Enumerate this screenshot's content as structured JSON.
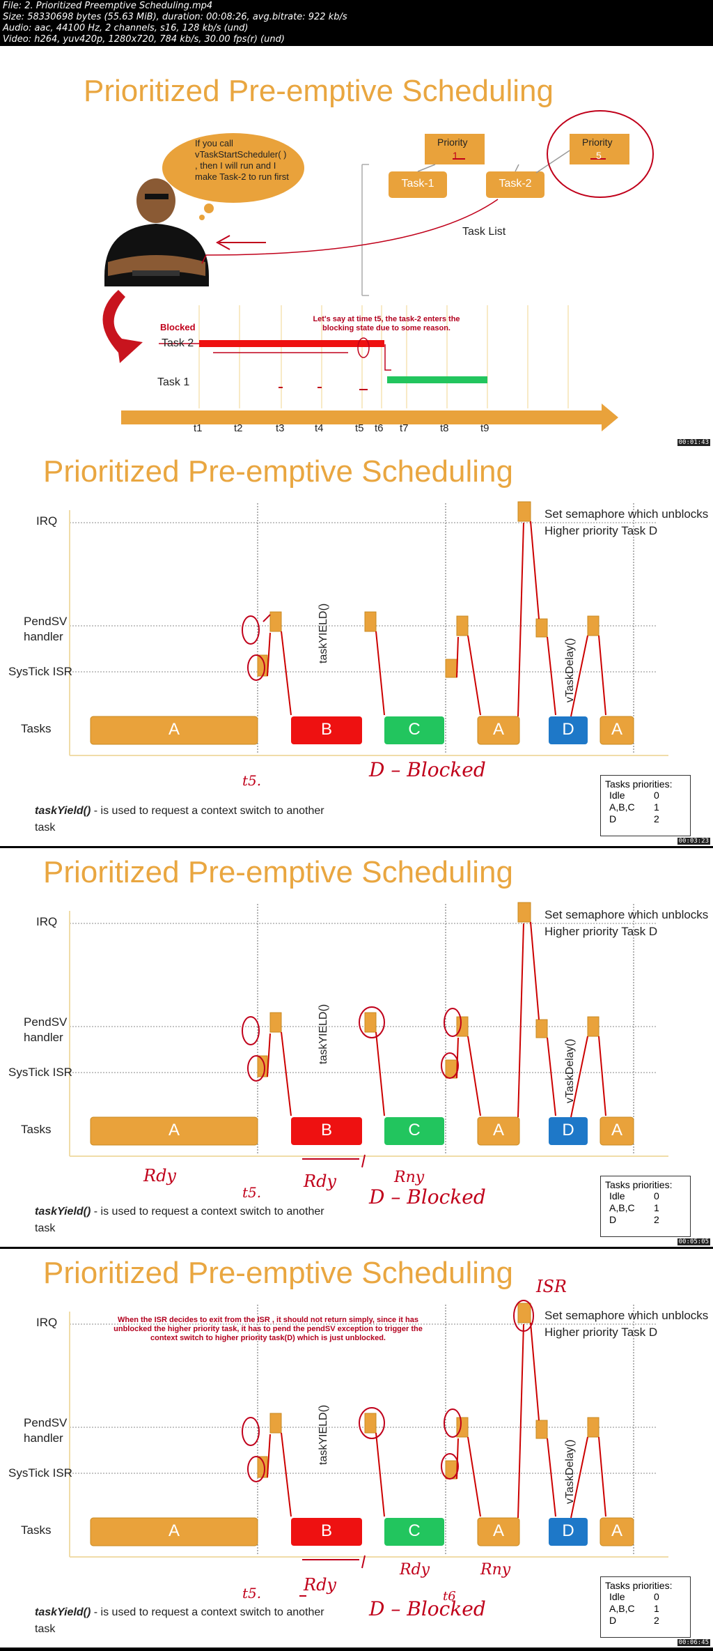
{
  "header": {
    "line1": "File: 2. Prioritized Preemptive Scheduling.mp4",
    "line2": "Size: 58330698 bytes (55.63 MiB), duration: 00:08:26, avg.bitrate: 922 kb/s",
    "line3": "Audio: aac, 44100 Hz, 2 channels, s16, 128 kb/s (und)",
    "line4": "Video: h264, yuv420p, 1280x720, 784 kb/s, 30.00 fps(r) (und)"
  },
  "frame1": {
    "title": "Prioritized Pre-emptive Scheduling",
    "bubble": "If you call\nvTaskStartScheduler( )\n, then I will run and I\nmake Task-2 to run first",
    "priority_label": "Priority",
    "priority_1": "1",
    "priority_5": "5",
    "task1": "Task-1",
    "task2": "Task-2",
    "task_list": "Task List",
    "blocked": "Blocked",
    "row_task2": "Task 2",
    "row_task1": "Task 1",
    "note": "Let's say at time t5, the task-2 enters the\nblocking state due to some reason.",
    "ticks": [
      "t1",
      "t2",
      "t3",
      "t4",
      "t5",
      "t6",
      "t7",
      "t8",
      "t9"
    ],
    "timestamp": "00:01:43"
  },
  "frames": [
    {
      "timestamp": "00:03:23",
      "hand": [
        "t5.",
        "D – Blocked"
      ]
    },
    {
      "timestamp": "00:05:05",
      "hand": [
        "Rdy",
        "t5.",
        "Rdy",
        "Rny",
        "D – Blocked"
      ]
    },
    {
      "timestamp": "00:06:45",
      "hand": [
        "ISR",
        "t5.",
        "Rdy",
        "Rdy",
        "t6",
        "Rny",
        "D – Blocked"
      ]
    }
  ],
  "chart": {
    "title": "Prioritized Pre-emptive Scheduling",
    "y_labels": {
      "irq": "IRQ",
      "pendsv1": "PendSV",
      "pendsv2": "handler",
      "systick": "SysTick ISR",
      "tasks": "Tasks"
    },
    "callout1": "Set semaphore which unblocks",
    "callout2": "Higher priority Task D",
    "vlabel_yield": "taskYIELD()",
    "vlabel_delay": "vTaskDelay()",
    "tasks": [
      "A",
      "B",
      "C",
      "A",
      "D",
      "A"
    ],
    "legend_title": "Tasks priorities:",
    "legend_rows": [
      [
        "Idle",
        "0"
      ],
      [
        "A,B,C",
        "1"
      ],
      [
        "D",
        "2"
      ]
    ],
    "caption_fn": "taskYield()",
    "caption_rest": " -  is used to request a context switch to another",
    "caption_rest2": "task",
    "isr_note": "When the ISR decides to exit from the ISR , it should not return simply, since it has unblocked the higher priority task, it has to pend the pendSV exception to trigger the context switch to higher priority task(D) which is just unblocked."
  },
  "colors": {
    "orange": "#e9a23b",
    "red": "#ee1111",
    "green": "#22c55e",
    "blue": "#1e78c8",
    "annotation": "#c0001a"
  }
}
